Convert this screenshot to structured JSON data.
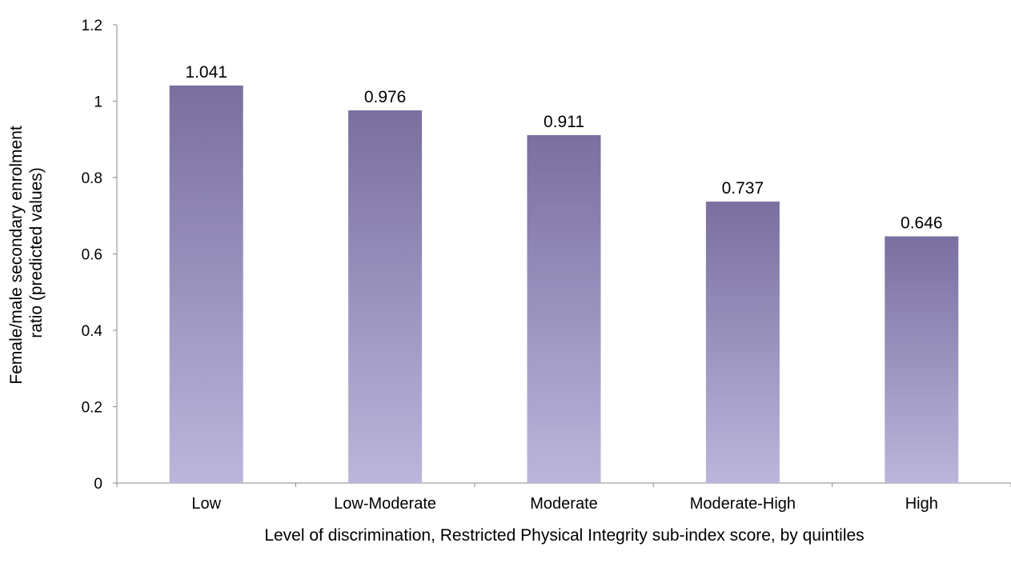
{
  "chart_data": {
    "type": "bar",
    "categories": [
      "Low",
      "Low-Moderate",
      "Moderate",
      "Moderate-High",
      "High"
    ],
    "values": [
      1.041,
      0.976,
      0.911,
      0.737,
      0.646
    ],
    "value_labels": [
      "1.041",
      "0.976",
      "0.911",
      "0.737",
      "0.646"
    ],
    "xlabel": "Level of discrimination, Restricted Physical Integrity sub-index score, by quintiles",
    "ylabel_lines": [
      "Female/male secondary enrolment",
      "ratio (predicted values)"
    ],
    "ylim": [
      0,
      1.2
    ],
    "yticks": [
      0,
      0.2,
      0.4,
      0.6,
      0.8,
      1,
      1.2
    ],
    "ytick_labels": [
      "0",
      "0.2",
      "0.4",
      "0.6",
      "0.8",
      "1",
      "1.2"
    ],
    "grid": false,
    "legend": "none",
    "colors": {
      "bar_top": "#7a6fa0",
      "bar_bottom": "#bbb6dc",
      "axis": "#888888",
      "text": "#000000"
    }
  }
}
